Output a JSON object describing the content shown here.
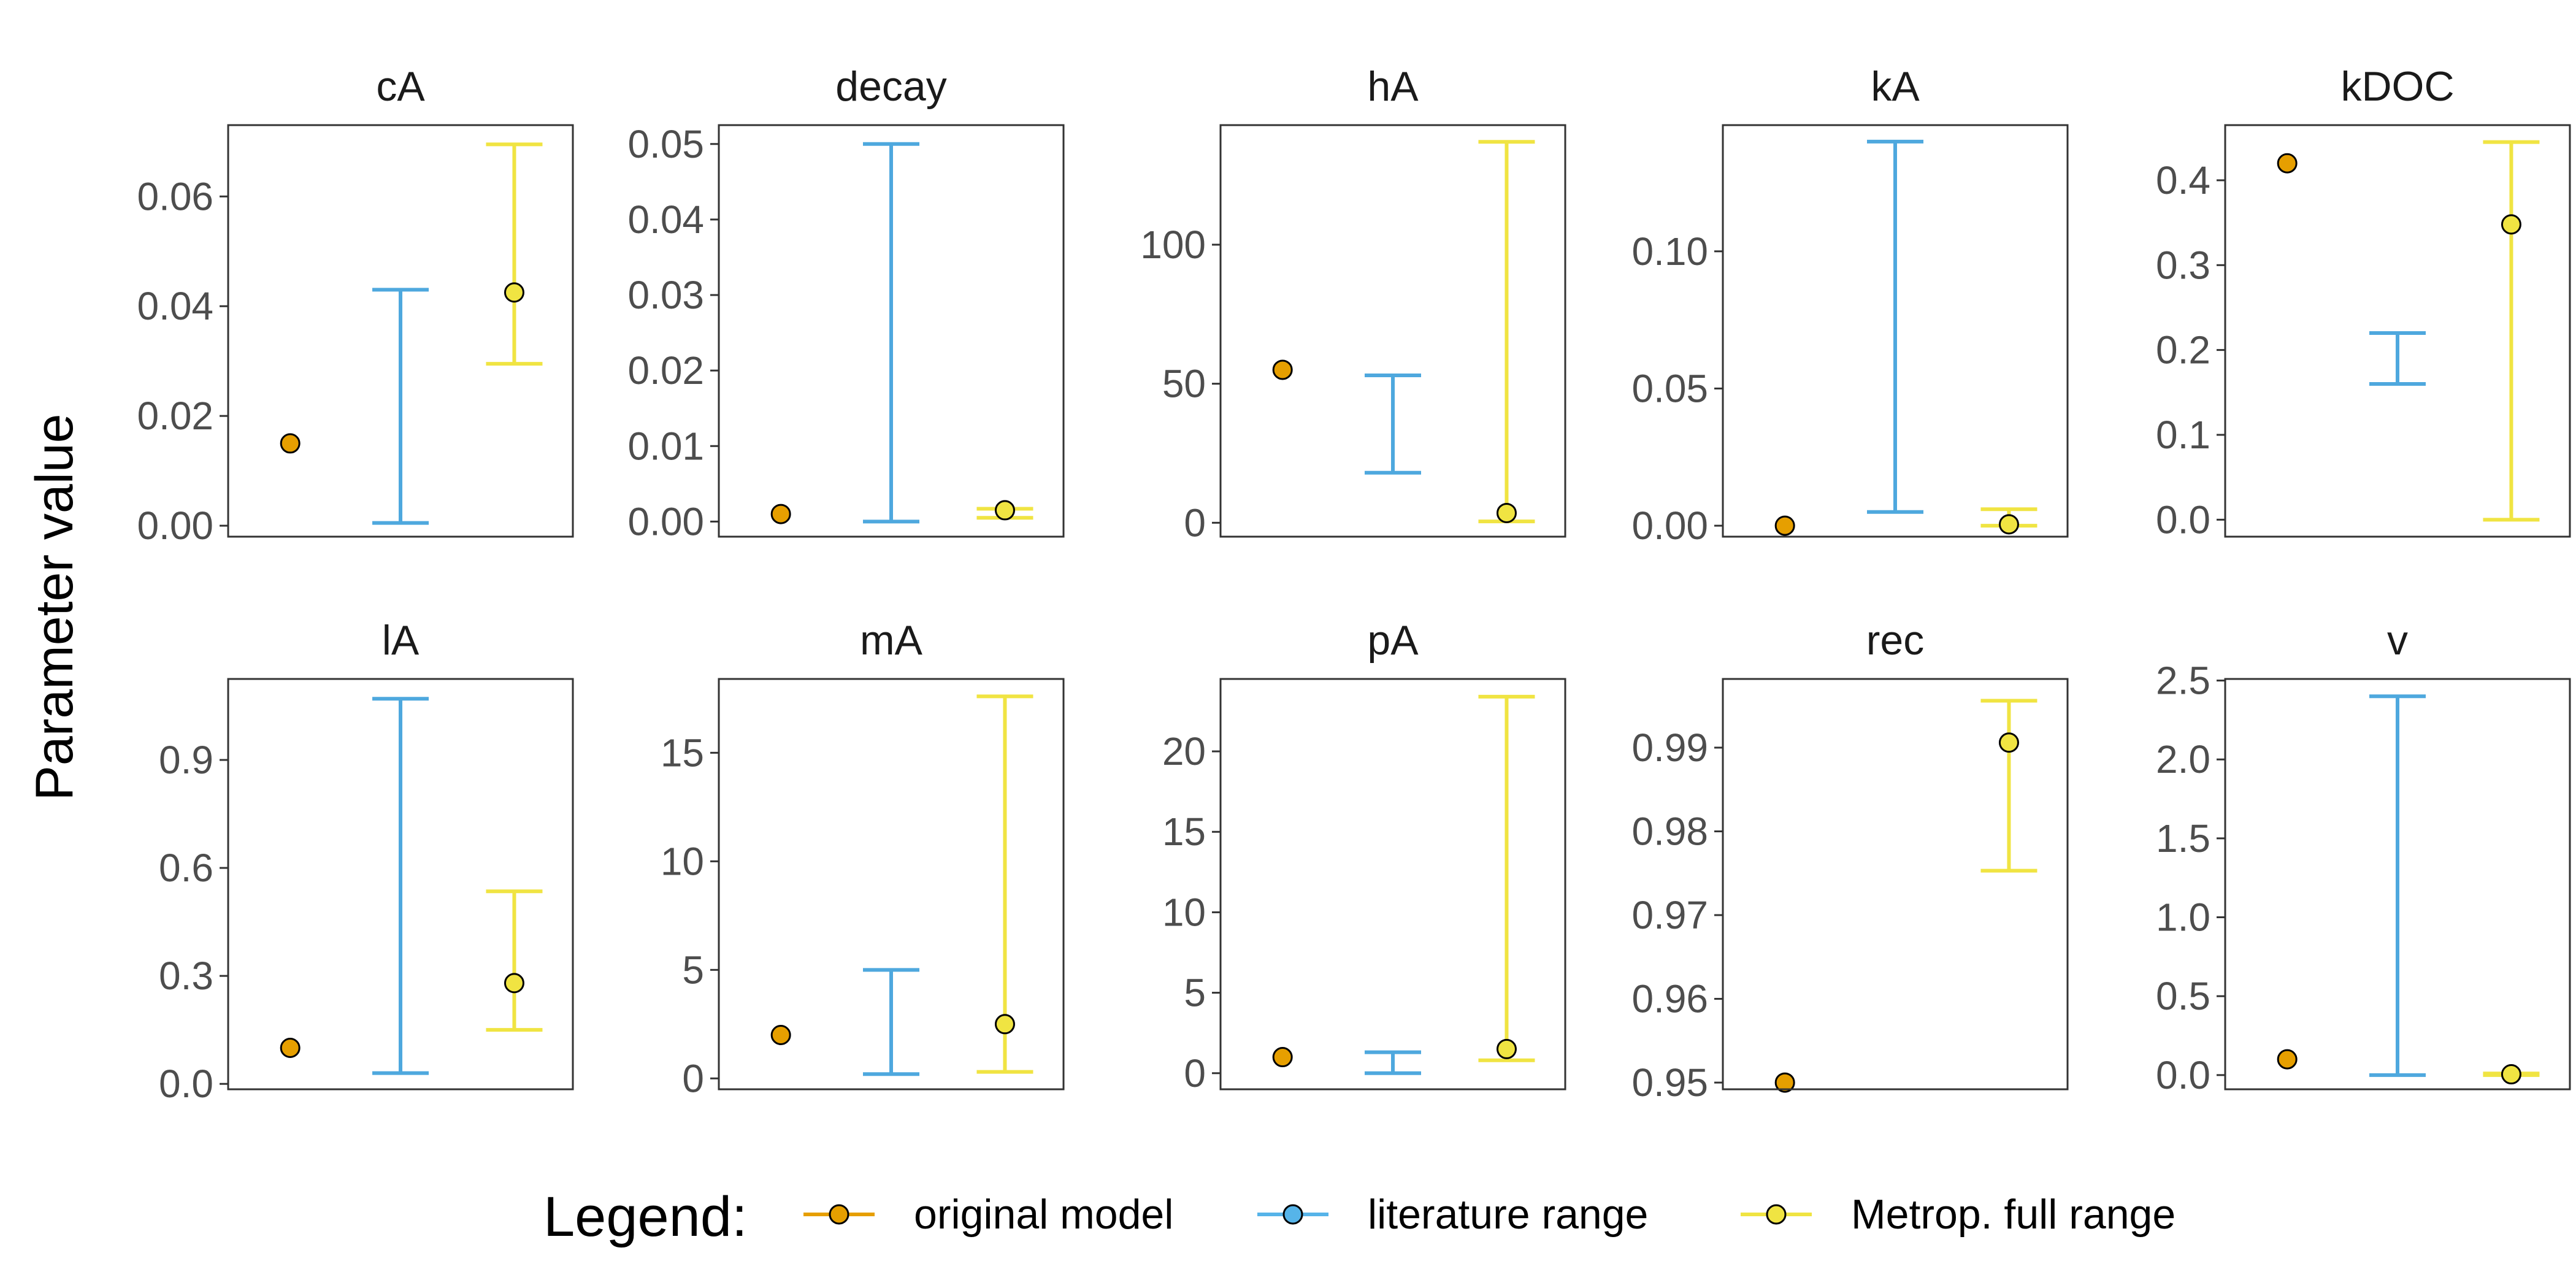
{
  "y_axis_title": "Parameter value",
  "legend": {
    "title": "Legend:",
    "items": [
      {
        "key": "original",
        "label": "original model",
        "fill": "#E69F00",
        "line": "#E69F00"
      },
      {
        "key": "literature",
        "label": "literature range",
        "fill": "#56B4E9",
        "line": "#56B4E9"
      },
      {
        "key": "metrop",
        "label": "Metrop. full range",
        "fill": "#F0E442",
        "line": "#F0E442"
      }
    ]
  },
  "colors": {
    "original_point": "#E69F00",
    "literature_bar": "#4EA8DE",
    "metrop_bar": "#F0E442",
    "metrop_point": "#F0E442",
    "panel_border": "#333333",
    "tick_text": "#4D4D4D",
    "title_text": "#1A1A1A"
  },
  "chart_data": [
    {
      "type": "scatter",
      "title": "cA",
      "ylim": [
        -0.002,
        0.073
      ],
      "ticks": [
        0.0,
        0.02,
        0.04,
        0.06
      ],
      "tick_labels": [
        "0.00",
        "0.02",
        "0.04",
        "0.06"
      ],
      "original": 0.015,
      "literature": [
        0.0005,
        0.043
      ],
      "metrop": {
        "low": 0.0295,
        "high": 0.0695,
        "point": 0.0425
      }
    },
    {
      "type": "scatter",
      "title": "decay",
      "ylim": [
        -0.002,
        0.0525
      ],
      "ticks": [
        0.0,
        0.01,
        0.02,
        0.03,
        0.04,
        0.05
      ],
      "tick_labels": [
        "0.00",
        "0.01",
        "0.02",
        "0.03",
        "0.04",
        "0.05"
      ],
      "original": 0.001,
      "literature": [
        0.0,
        0.05
      ],
      "metrop": {
        "low": 0.0005,
        "high": 0.0017,
        "point": 0.0015
      }
    },
    {
      "type": "scatter",
      "title": "hA",
      "ylim": [
        -5,
        143
      ],
      "ticks": [
        0,
        50,
        100
      ],
      "tick_labels": [
        "0",
        "50",
        "100"
      ],
      "original": 55,
      "literature": [
        18,
        53
      ],
      "metrop": {
        "low": 0.5,
        "high": 137,
        "point": 3.5
      }
    },
    {
      "type": "scatter",
      "title": "kA",
      "ylim": [
        -0.004,
        0.146
      ],
      "ticks": [
        0.0,
        0.05,
        0.1
      ],
      "tick_labels": [
        "0.00",
        "0.05",
        "0.10"
      ],
      "original": 0.0,
      "literature": [
        0.005,
        0.14
      ],
      "metrop": {
        "low": 0.0,
        "high": 0.006,
        "point": 0.0005
      }
    },
    {
      "type": "scatter",
      "title": "kDOC",
      "ylim": [
        -0.02,
        0.465
      ],
      "ticks": [
        0.0,
        0.1,
        0.2,
        0.3,
        0.4
      ],
      "tick_labels": [
        "0.0",
        "0.1",
        "0.2",
        "0.3",
        "0.4"
      ],
      "original": 0.42,
      "literature": [
        0.16,
        0.22
      ],
      "metrop": {
        "low": 0.0,
        "high": 0.445,
        "point": 0.348
      }
    },
    {
      "type": "scatter",
      "title": "lA",
      "ylim": [
        -0.015,
        1.125
      ],
      "ticks": [
        0.0,
        0.3,
        0.6,
        0.9
      ],
      "tick_labels": [
        "0.0",
        "0.3",
        "0.6",
        "0.9"
      ],
      "original": 0.1,
      "literature": [
        0.03,
        1.07
      ],
      "metrop": {
        "low": 0.15,
        "high": 0.535,
        "point": 0.28
      }
    },
    {
      "type": "scatter",
      "title": "mA",
      "ylim": [
        -0.5,
        18.4
      ],
      "ticks": [
        0,
        5,
        10,
        15
      ],
      "tick_labels": [
        "0",
        "5",
        "10",
        "15"
      ],
      "original": 2.0,
      "literature": [
        0.2,
        5.0
      ],
      "metrop": {
        "low": 0.3,
        "high": 17.6,
        "point": 2.5
      }
    },
    {
      "type": "scatter",
      "title": "pA",
      "ylim": [
        -1,
        24.5
      ],
      "ticks": [
        0,
        5,
        10,
        15,
        20
      ],
      "tick_labels": [
        "0",
        "5",
        "10",
        "15",
        "20"
      ],
      "original": 1.0,
      "literature": [
        0.0,
        1.3
      ],
      "metrop": {
        "low": 0.8,
        "high": 23.4,
        "point": 1.5
      }
    },
    {
      "type": "scatter",
      "title": "rec",
      "ylim": [
        0.9492,
        0.9982
      ],
      "ticks": [
        0.95,
        0.96,
        0.97,
        0.98,
        0.99
      ],
      "tick_labels": [
        "0.95",
        "0.96",
        "0.97",
        "0.98",
        "0.99"
      ],
      "original": 0.95,
      "literature": null,
      "metrop": {
        "low": 0.9753,
        "high": 0.9956,
        "point": 0.9906
      }
    },
    {
      "type": "scatter",
      "title": "v",
      "ylim": [
        -0.09,
        2.51
      ],
      "ticks": [
        0.0,
        0.5,
        1.0,
        1.5,
        2.0,
        2.5
      ],
      "tick_labels": [
        "0.0",
        "0.5",
        "1.0",
        "1.5",
        "2.0",
        "2.5"
      ],
      "original": 0.1,
      "literature": [
        0.0,
        2.4
      ],
      "metrop": {
        "low": 0.0,
        "high": 0.01,
        "point": 0.005
      }
    }
  ]
}
